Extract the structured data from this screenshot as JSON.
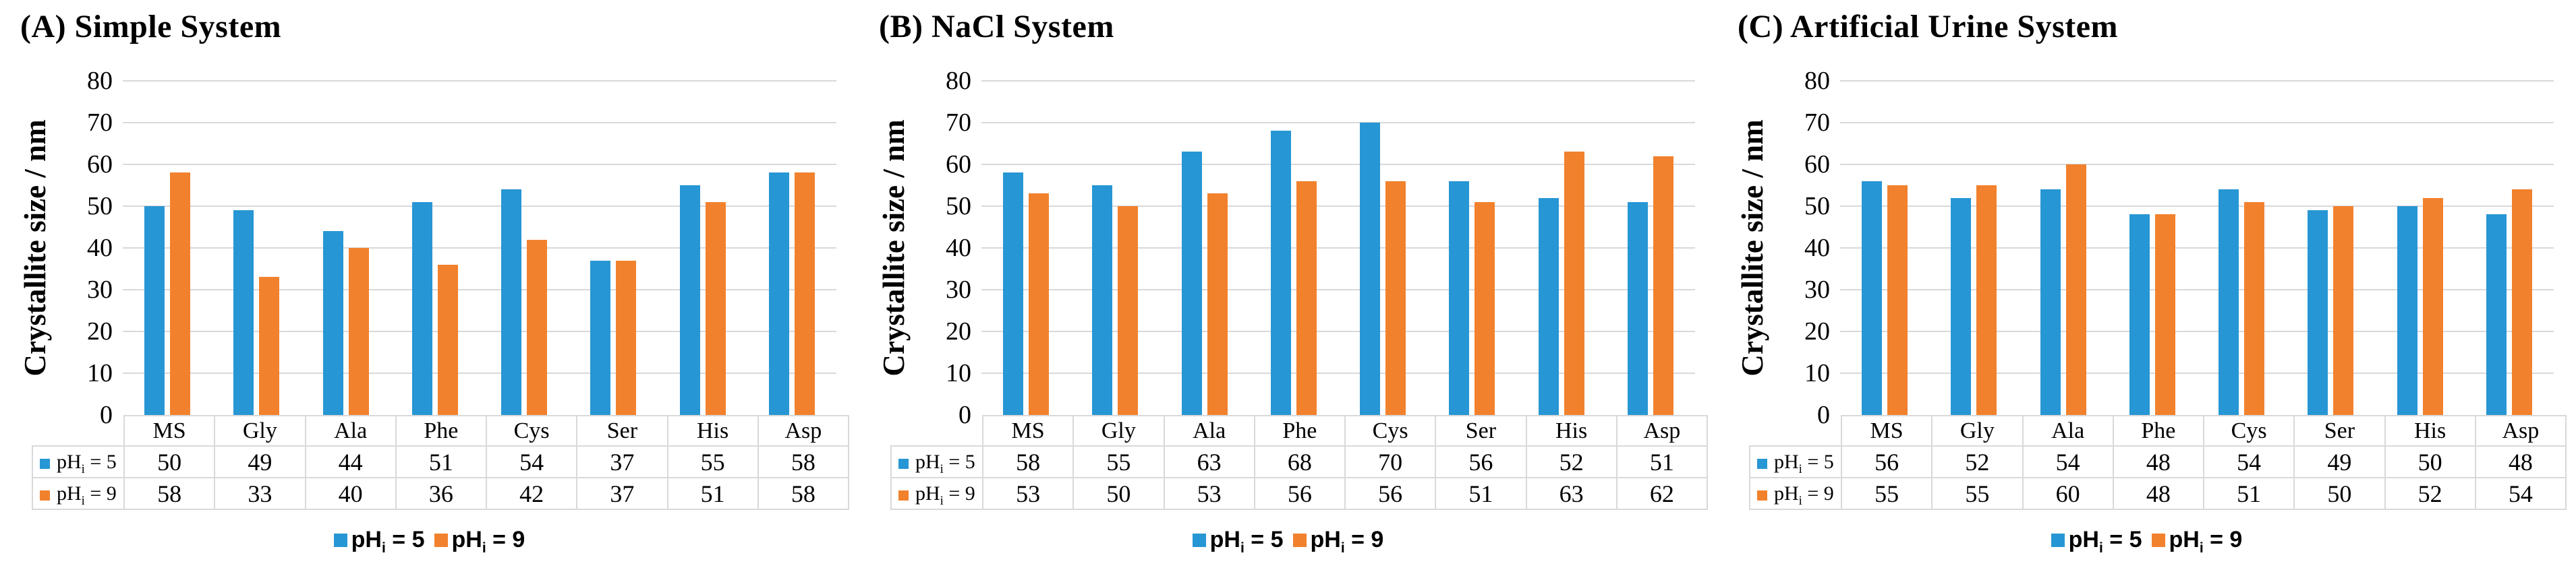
{
  "figure": {
    "background": "#FFFFFF",
    "grid_color": "#D9D9D9",
    "table_border_color": "#D9D9D9",
    "text_color": "#000000"
  },
  "chart_data": [
    {
      "type": "bar",
      "title": "(A) Simple System",
      "xlabel": "",
      "ylabel": "Crystallite size / nm",
      "ylim": [
        0,
        80
      ],
      "ytick_step": 10,
      "yticks": [
        0,
        10,
        20,
        30,
        40,
        50,
        60,
        70,
        80
      ],
      "grid": true,
      "legend_position": "bottom",
      "data_table": true,
      "categories": [
        "MS",
        "Gly",
        "Ala",
        "Phe",
        "Cys",
        "Ser",
        "His",
        "Asp"
      ],
      "series": [
        {
          "key": "ph5",
          "name": "pHi = 5",
          "label_parts": {
            "base": "pH",
            "sub": "i",
            "rest": " = 5"
          },
          "color": "#2796D4",
          "values": [
            50,
            49,
            44,
            51,
            54,
            37,
            55,
            58
          ]
        },
        {
          "key": "ph9",
          "name": "pHi = 9",
          "label_parts": {
            "base": "pH",
            "sub": "i",
            "rest": " = 9"
          },
          "color": "#F2812D",
          "values": [
            58,
            33,
            40,
            36,
            42,
            37,
            51,
            58
          ]
        }
      ]
    },
    {
      "type": "bar",
      "title": "(B) NaCl System",
      "xlabel": "",
      "ylabel": "Crystallite size / nm",
      "ylim": [
        0,
        80
      ],
      "ytick_step": 10,
      "yticks": [
        0,
        10,
        20,
        30,
        40,
        50,
        60,
        70,
        80
      ],
      "grid": true,
      "legend_position": "bottom",
      "data_table": true,
      "categories": [
        "MS",
        "Gly",
        "Ala",
        "Phe",
        "Cys",
        "Ser",
        "His",
        "Asp"
      ],
      "series": [
        {
          "key": "ph5",
          "name": "pHi = 5",
          "label_parts": {
            "base": "pH",
            "sub": "i",
            "rest": " = 5"
          },
          "color": "#2796D4",
          "values": [
            58,
            55,
            63,
            68,
            70,
            56,
            52,
            51
          ]
        },
        {
          "key": "ph9",
          "name": "pHi = 9",
          "label_parts": {
            "base": "pH",
            "sub": "i",
            "rest": " = 9"
          },
          "color": "#F2812D",
          "values": [
            53,
            50,
            53,
            56,
            56,
            51,
            63,
            62
          ]
        }
      ]
    },
    {
      "type": "bar",
      "title": "(C) Artificial Urine System",
      "xlabel": "",
      "ylabel": "Crystallite size / nm",
      "ylim": [
        0,
        80
      ],
      "ytick_step": 10,
      "yticks": [
        0,
        10,
        20,
        30,
        40,
        50,
        60,
        70,
        80
      ],
      "grid": true,
      "legend_position": "bottom",
      "data_table": true,
      "categories": [
        "MS",
        "Gly",
        "Ala",
        "Phe",
        "Cys",
        "Ser",
        "His",
        "Asp"
      ],
      "series": [
        {
          "key": "ph5",
          "name": "pHi = 5",
          "label_parts": {
            "base": "pH",
            "sub": "i",
            "rest": " = 5"
          },
          "color": "#2796D4",
          "values": [
            56,
            52,
            54,
            48,
            54,
            49,
            50,
            48
          ]
        },
        {
          "key": "ph9",
          "name": "pHi = 9",
          "label_parts": {
            "base": "pH",
            "sub": "i",
            "rest": " = 9"
          },
          "color": "#F2812D",
          "values": [
            55,
            55,
            60,
            48,
            51,
            50,
            52,
            54
          ]
        }
      ]
    }
  ]
}
